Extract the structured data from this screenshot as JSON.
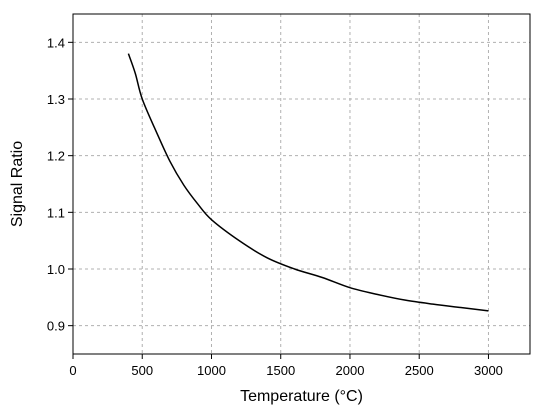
{
  "chart_data": {
    "type": "line",
    "title": "",
    "xlabel": "Temperature (°C)",
    "ylabel": "Signal Ratio",
    "xlim": [
      0,
      3300
    ],
    "ylim": [
      0.85,
      1.45
    ],
    "x_ticks": [
      0,
      500,
      1000,
      1500,
      2000,
      2500,
      3000
    ],
    "x_tick_labels": [
      "0",
      "500",
      "1000",
      "1500",
      "2000",
      "2500",
      "3000"
    ],
    "y_ticks": [
      0.9,
      1.0,
      1.1,
      1.2,
      1.3,
      1.4
    ],
    "y_tick_labels": [
      "0.9",
      "1.0",
      "1.1",
      "1.2",
      "1.3",
      "1.4"
    ],
    "grid": true,
    "grid_style": "dashed",
    "legend": "none",
    "series": [
      {
        "color": "#000000",
        "x": [
          400,
          450,
          500,
          600,
          700,
          800,
          900,
          1000,
          1200,
          1400,
          1600,
          1800,
          2000,
          2200,
          2400,
          2600,
          2800,
          3000
        ],
        "y": [
          1.38,
          1.345,
          1.3,
          1.243,
          1.19,
          1.148,
          1.115,
          1.087,
          1.05,
          1.02,
          1.0,
          0.985,
          0.967,
          0.955,
          0.945,
          0.938,
          0.932,
          0.926
        ]
      }
    ]
  }
}
